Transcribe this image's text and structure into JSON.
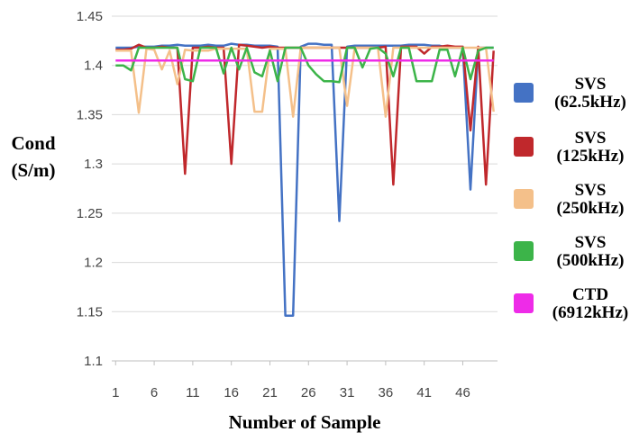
{
  "chart_data": {
    "type": "line",
    "title": "",
    "xlabel": "Number of Sample",
    "ylabel_lines": [
      "Cond",
      "(S/m)"
    ],
    "xlim": [
      1,
      50
    ],
    "ylim": [
      1.1,
      1.45
    ],
    "x_ticks": [
      1,
      6,
      11,
      16,
      21,
      26,
      31,
      36,
      41,
      46
    ],
    "y_ticks": [
      "1.1",
      "1.15",
      "1.2",
      "1.25",
      "1.3",
      "1.35",
      "1.4",
      "1.45"
    ],
    "grid": "horizontal",
    "legend_position": "right",
    "x": [
      1,
      2,
      3,
      4,
      5,
      6,
      7,
      8,
      9,
      10,
      11,
      12,
      13,
      14,
      15,
      16,
      17,
      18,
      19,
      20,
      21,
      22,
      23,
      24,
      25,
      26,
      27,
      28,
      29,
      30,
      31,
      32,
      33,
      34,
      35,
      36,
      37,
      38,
      39,
      40,
      41,
      42,
      43,
      44,
      45,
      46,
      47,
      48,
      49,
      50
    ],
    "series": [
      {
        "name": "SVS (62.5kHz)",
        "legend_lines": [
          "SVS",
          "(62.5kHz)"
        ],
        "color": "#4472c4",
        "values": [
          1.418,
          1.418,
          1.418,
          1.419,
          1.419,
          1.419,
          1.42,
          1.42,
          1.421,
          1.42,
          1.42,
          1.42,
          1.421,
          1.42,
          1.42,
          1.422,
          1.421,
          1.421,
          1.42,
          1.42,
          1.42,
          1.419,
          1.146,
          1.146,
          1.419,
          1.422,
          1.422,
          1.421,
          1.421,
          1.242,
          1.419,
          1.42,
          1.42,
          1.42,
          1.42,
          1.42,
          1.42,
          1.42,
          1.421,
          1.421,
          1.421,
          1.42,
          1.42,
          1.418,
          1.418,
          1.418,
          1.274,
          1.418,
          1.418,
          1.418
        ]
      },
      {
        "name": "SVS (125kHz)",
        "legend_lines": [
          "SVS",
          "(125kHz)"
        ],
        "color": "#c0282c",
        "values": [
          1.416,
          1.416,
          1.417,
          1.421,
          1.418,
          1.418,
          1.419,
          1.418,
          1.418,
          1.29,
          1.418,
          1.418,
          1.419,
          1.418,
          1.418,
          1.3,
          1.421,
          1.42,
          1.419,
          1.418,
          1.419,
          1.418,
          1.418,
          1.418,
          1.418,
          1.418,
          1.418,
          1.418,
          1.418,
          1.418,
          1.418,
          1.418,
          1.418,
          1.418,
          1.418,
          1.419,
          1.279,
          1.419,
          1.419,
          1.419,
          1.412,
          1.419,
          1.419,
          1.42,
          1.419,
          1.419,
          1.334,
          1.419,
          1.279,
          1.415
        ]
      },
      {
        "name": "SVS (250kHz)",
        "legend_lines": [
          "SVS",
          "(250kHz)"
        ],
        "color": "#f4c08a",
        "values": [
          1.415,
          1.415,
          1.415,
          1.352,
          1.417,
          1.416,
          1.396,
          1.415,
          1.381,
          1.416,
          1.415,
          1.415,
          1.415,
          1.417,
          1.417,
          1.417,
          1.417,
          1.417,
          1.353,
          1.353,
          1.417,
          1.417,
          1.417,
          1.348,
          1.418,
          1.418,
          1.418,
          1.418,
          1.418,
          1.418,
          1.359,
          1.418,
          1.418,
          1.418,
          1.418,
          1.348,
          1.418,
          1.418,
          1.418,
          1.418,
          1.418,
          1.418,
          1.418,
          1.418,
          1.418,
          1.418,
          1.418,
          1.418,
          1.418,
          1.353
        ]
      },
      {
        "name": "SVS (500kHz)",
        "legend_lines": [
          "SVS",
          "(500kHz)"
        ],
        "color": "#3cb449",
        "values": [
          1.4,
          1.4,
          1.395,
          1.418,
          1.418,
          1.418,
          1.418,
          1.418,
          1.418,
          1.386,
          1.384,
          1.418,
          1.418,
          1.418,
          1.392,
          1.418,
          1.396,
          1.418,
          1.393,
          1.389,
          1.415,
          1.384,
          1.418,
          1.418,
          1.418,
          1.4,
          1.391,
          1.384,
          1.384,
          1.383,
          1.418,
          1.418,
          1.398,
          1.417,
          1.418,
          1.412,
          1.389,
          1.418,
          1.418,
          1.384,
          1.384,
          1.384,
          1.416,
          1.416,
          1.389,
          1.418,
          1.386,
          1.415,
          1.418,
          1.418
        ]
      },
      {
        "name": "CTD (6912kHz)",
        "legend_lines": [
          "CTD",
          "(6912kHz)"
        ],
        "color": "#ee2be8",
        "values": [
          1.405,
          1.405,
          1.405,
          1.405,
          1.405,
          1.405,
          1.405,
          1.405,
          1.405,
          1.405,
          1.405,
          1.405,
          1.405,
          1.405,
          1.405,
          1.405,
          1.405,
          1.405,
          1.405,
          1.405,
          1.405,
          1.405,
          1.405,
          1.405,
          1.405,
          1.405,
          1.405,
          1.405,
          1.405,
          1.405,
          1.405,
          1.405,
          1.405,
          1.405,
          1.405,
          1.405,
          1.405,
          1.405,
          1.405,
          1.405,
          1.405,
          1.405,
          1.405,
          1.405,
          1.405,
          1.405,
          1.405,
          1.405,
          1.405,
          1.405
        ]
      }
    ]
  }
}
